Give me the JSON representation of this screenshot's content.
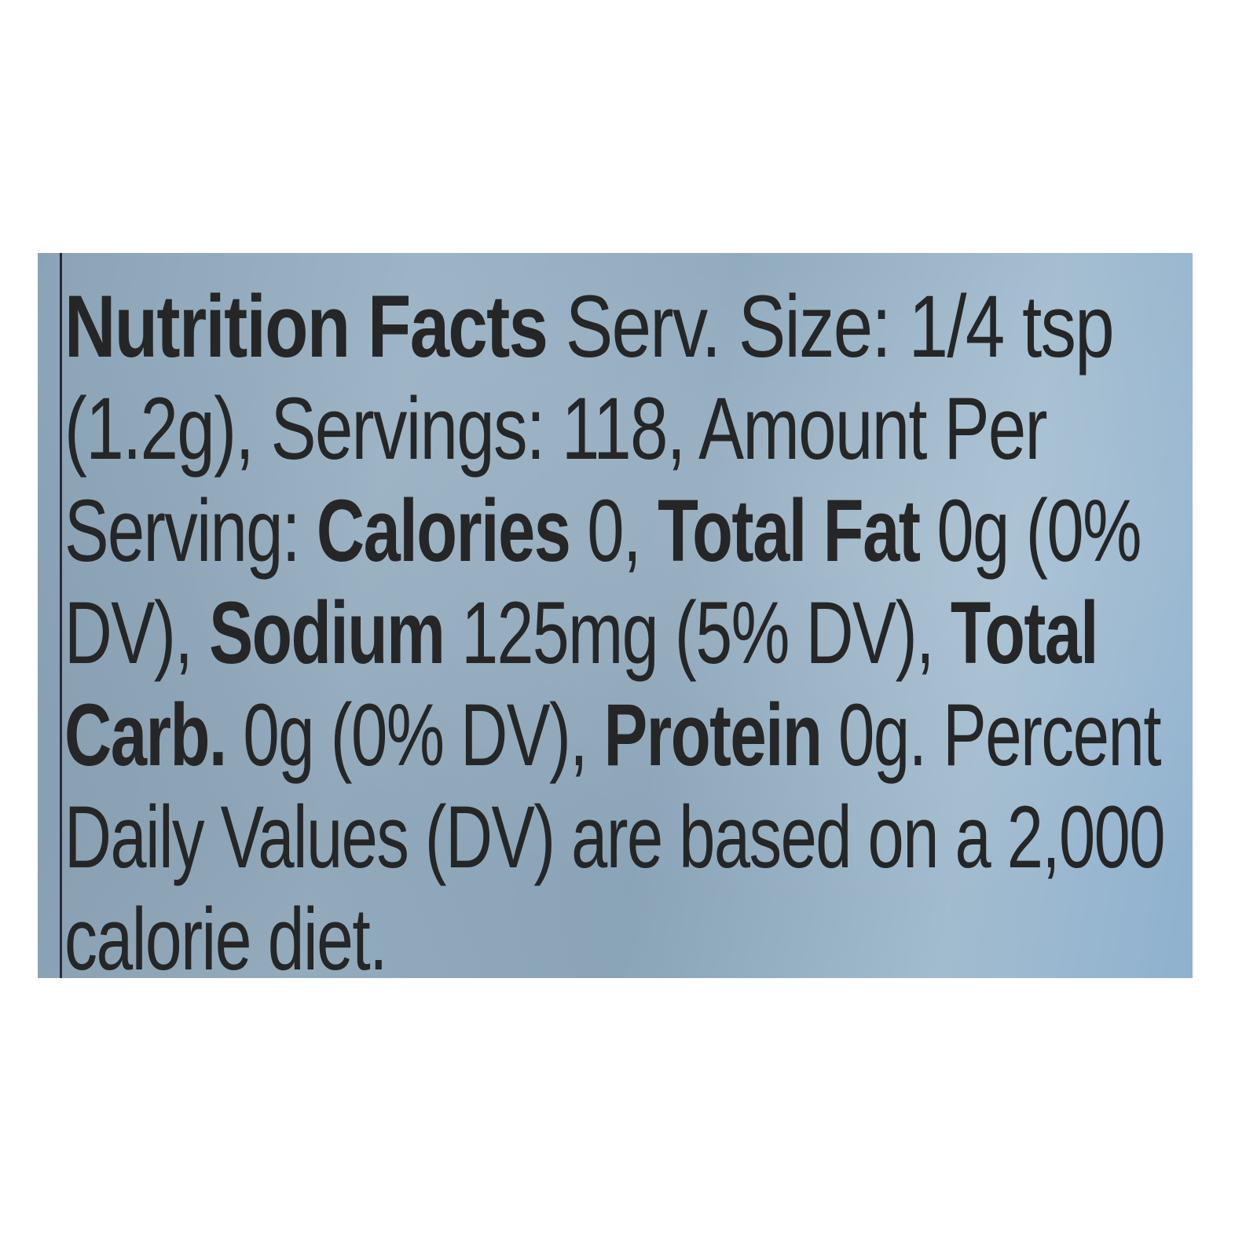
{
  "label": {
    "lines": [
      [
        {
          "text": "Nutrition Facts ",
          "bold": true
        },
        {
          "text": "Serv. Size: 1/4 tsp",
          "bold": false
        }
      ],
      [
        {
          "text": "(1.2g), Servings: 118, Amount Per",
          "bold": false
        }
      ],
      [
        {
          "text": "Serving: ",
          "bold": false
        },
        {
          "text": "Calories ",
          "bold": true
        },
        {
          "text": "0, ",
          "bold": false
        },
        {
          "text": "Total Fat ",
          "bold": true
        },
        {
          "text": "0g (0%",
          "bold": false
        }
      ],
      [
        {
          "text": "DV), ",
          "bold": false
        },
        {
          "text": "Sodium ",
          "bold": true
        },
        {
          "text": "125mg (5% DV), ",
          "bold": false
        },
        {
          "text": "Total",
          "bold": true
        }
      ],
      [
        {
          "text": "Carb. ",
          "bold": true
        },
        {
          "text": "0g (0% DV), ",
          "bold": false
        },
        {
          "text": "Protein ",
          "bold": true
        },
        {
          "text": "0g. Percent",
          "bold": false
        }
      ],
      [
        {
          "text": "Daily Values (DV) are based on a 2,000",
          "bold": false
        }
      ],
      [
        {
          "text": "calorie diet.",
          "bold": false
        }
      ]
    ]
  }
}
